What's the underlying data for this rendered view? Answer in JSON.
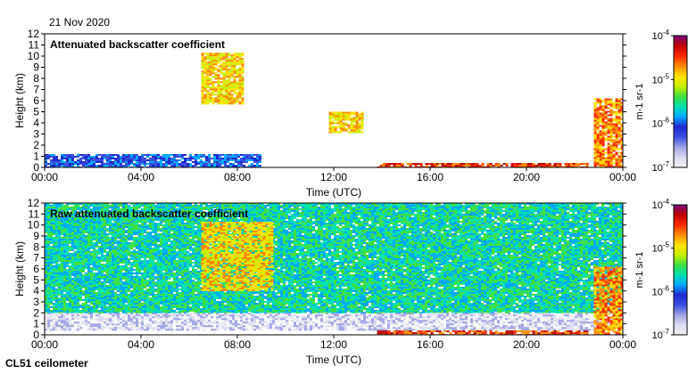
{
  "date": "21 Nov 2020",
  "instrument": "CL51 ceilometer",
  "colormap": [
    "#f2f2f5",
    "#d9d9ee",
    "#9fa3e6",
    "#3c4fe0",
    "#1f2bd0",
    "#00aaff",
    "#00e0b0",
    "#40e040",
    "#c8f000",
    "#ffe000",
    "#ff8a00",
    "#ff2a00",
    "#c00000",
    "#7a007a"
  ],
  "chart_data": [
    {
      "type": "heatmap",
      "title": "Attenuated backscatter coefficient",
      "xlabel": "Time (UTC)",
      "ylabel": "Height (km)",
      "x_ticks": [
        "00:00",
        "04:00",
        "08:00",
        "12:00",
        "16:00",
        "20:00",
        "00:00"
      ],
      "y_ticks": [
        "0",
        "1",
        "2",
        "3",
        "4",
        "5",
        "6",
        "7",
        "8",
        "9",
        "10",
        "11",
        "12"
      ],
      "xlim_hours": [
        0,
        24
      ],
      "ylim_km": [
        0,
        12
      ],
      "colorbar": {
        "label": "m-1 sr-1",
        "ticks": [
          "10-7",
          "10-6",
          "10-5",
          "10-4"
        ],
        "scale": "log",
        "range": [
          1e-07,
          0.0001
        ]
      },
      "features": [
        {
          "name": "boundary layer aerosol",
          "x_hours": [
            0,
            9
          ],
          "y_km": [
            0,
            1.2
          ],
          "level": 4
        },
        {
          "name": "descending cloud band",
          "x_hours": [
            6.5,
            8.2
          ],
          "y_km": [
            5.8,
            10.3
          ],
          "level": 9
        },
        {
          "name": "mid-level cloud",
          "x_hours": [
            11.8,
            13.2
          ],
          "y_km": [
            3.2,
            5.0
          ],
          "level": 9
        },
        {
          "name": "low cloud / fog",
          "x_hours": [
            13.8,
            22.5
          ],
          "y_km": [
            0,
            0.4
          ],
          "level": 11
        },
        {
          "name": "late rising cloud",
          "x_hours": [
            22.8,
            24
          ],
          "y_km": [
            0,
            6.2
          ],
          "level": 10
        }
      ]
    },
    {
      "type": "heatmap",
      "title": "Raw attenuated backscatter coefficient",
      "xlabel": "Time (UTC)",
      "ylabel": "Height (km)",
      "x_ticks": [
        "00:00",
        "04:00",
        "08:00",
        "12:00",
        "16:00",
        "20:00",
        "00:00"
      ],
      "y_ticks": [
        "0",
        "1",
        "2",
        "3",
        "4",
        "5",
        "6",
        "7",
        "8",
        "9",
        "10",
        "11",
        "12"
      ],
      "xlim_hours": [
        0,
        24
      ],
      "ylim_km": [
        0,
        12
      ],
      "colorbar": {
        "label": "m-1 sr-1",
        "ticks": [
          "10-7",
          "10-6",
          "10-5",
          "10-4"
        ],
        "scale": "log",
        "range": [
          1e-07,
          0.0001
        ]
      },
      "features": [
        {
          "name": "background noise",
          "x_hours": [
            0,
            24
          ],
          "y_km": [
            2,
            12
          ],
          "level": 6
        },
        {
          "name": "low noise band",
          "x_hours": [
            0,
            24
          ],
          "y_km": [
            0.5,
            2.0
          ],
          "level": 1
        },
        {
          "name": "descending cloud band",
          "x_hours": [
            6.5,
            9.5
          ],
          "y_km": [
            4.0,
            10.3
          ],
          "level": 9
        },
        {
          "name": "low cloud / fog",
          "x_hours": [
            13.8,
            22.5
          ],
          "y_km": [
            0,
            0.4
          ],
          "level": 11
        },
        {
          "name": "late rising cloud",
          "x_hours": [
            22.8,
            24
          ],
          "y_km": [
            0,
            6.2
          ],
          "level": 10
        }
      ]
    }
  ]
}
